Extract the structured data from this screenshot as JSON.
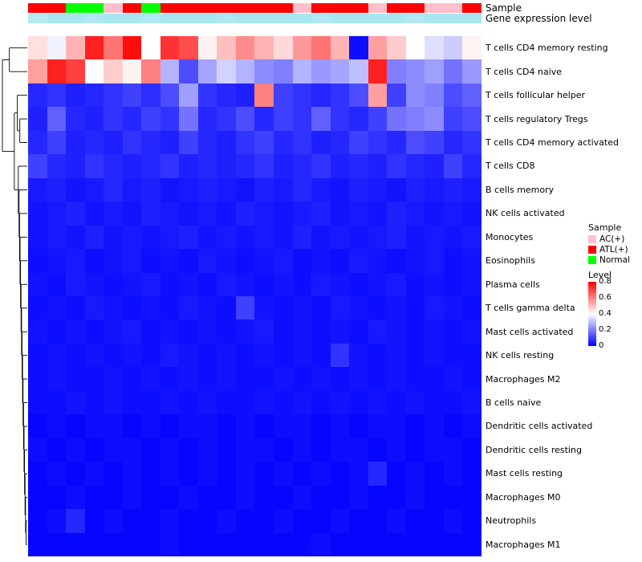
{
  "annotations": {
    "sample_label": "Sample",
    "gene_label": "Gene expression level"
  },
  "legend": {
    "sample_title": "Sample",
    "sample_entries": [
      {
        "label": "AC(+)",
        "color": "#FFC0CB"
      },
      {
        "label": "ATL(+)",
        "color": "#FF0000"
      },
      {
        "label": "Normal",
        "color": "#00FF00"
      }
    ],
    "level_title": "Level",
    "level_ticks": [
      "0.8",
      "0.6",
      "0.4",
      "0.2",
      "0"
    ],
    "level_gradient": [
      "#FF0000",
      "#FFFFFF",
      "#0000FF"
    ]
  },
  "chart_data": {
    "type": "heatmap",
    "title": "",
    "xlabel": "",
    "ylabel": "",
    "grid": false,
    "legend_position": "right",
    "columns": 24,
    "value_range": [
      0,
      0.8
    ],
    "colormap": [
      "#0000FF",
      "#FFFFFF",
      "#FF0000"
    ],
    "rows": [
      "T cells CD4 memory resting",
      "T cells CD4 naive",
      "T cells follicular helper",
      "T cells regulatory Tregs",
      "T cells CD4 memory activated",
      "T cells CD8",
      "B cells memory",
      "NK cells activated",
      "Monocytes",
      "Eosinophils",
      "Plasma cells",
      "T cells gamma delta",
      "Mast cells activated",
      "NK cells resting",
      "Macrophages M2",
      "B cells naive",
      "Dendritic cells activated",
      "Dendritic cells resting",
      "Mast cells resting",
      "Macrophages M0",
      "Neutrophils",
      "Macrophages M1"
    ],
    "values": [
      [
        0.45,
        0.38,
        0.52,
        0.75,
        0.62,
        0.78,
        0.4,
        0.72,
        0.68,
        0.42,
        0.5,
        0.58,
        0.52,
        0.46,
        0.56,
        0.62,
        0.52,
        0.02,
        0.55,
        0.48,
        0.4,
        0.35,
        0.32,
        0.42
      ],
      [
        0.55,
        0.75,
        0.7,
        0.4,
        0.48,
        0.42,
        0.6,
        0.28,
        0.12,
        0.26,
        0.33,
        0.28,
        0.22,
        0.2,
        0.28,
        0.24,
        0.26,
        0.3,
        0.75,
        0.2,
        0.22,
        0.25,
        0.18,
        0.24
      ],
      [
        0.06,
        0.08,
        0.05,
        0.06,
        0.08,
        0.1,
        0.07,
        0.12,
        0.25,
        0.08,
        0.06,
        0.05,
        0.6,
        0.1,
        0.08,
        0.06,
        0.08,
        0.12,
        0.55,
        0.1,
        0.22,
        0.2,
        0.12,
        0.15
      ],
      [
        0.05,
        0.15,
        0.06,
        0.05,
        0.08,
        0.06,
        0.1,
        0.08,
        0.18,
        0.06,
        0.08,
        0.12,
        0.06,
        0.1,
        0.08,
        0.15,
        0.08,
        0.06,
        0.1,
        0.18,
        0.2,
        0.22,
        0.1,
        0.12
      ],
      [
        0.06,
        0.1,
        0.05,
        0.06,
        0.05,
        0.08,
        0.06,
        0.05,
        0.1,
        0.06,
        0.05,
        0.08,
        0.1,
        0.06,
        0.08,
        0.05,
        0.06,
        0.1,
        0.08,
        0.06,
        0.12,
        0.1,
        0.06,
        0.08
      ],
      [
        0.1,
        0.06,
        0.05,
        0.08,
        0.06,
        0.05,
        0.06,
        0.08,
        0.05,
        0.06,
        0.05,
        0.06,
        0.08,
        0.05,
        0.06,
        0.08,
        0.05,
        0.06,
        0.05,
        0.08,
        0.06,
        0.05,
        0.1,
        0.06
      ],
      [
        0.04,
        0.05,
        0.03,
        0.04,
        0.06,
        0.04,
        0.05,
        0.03,
        0.04,
        0.05,
        0.04,
        0.03,
        0.05,
        0.04,
        0.06,
        0.04,
        0.03,
        0.05,
        0.04,
        0.03,
        0.05,
        0.04,
        0.05,
        0.04
      ],
      [
        0.03,
        0.04,
        0.05,
        0.03,
        0.04,
        0.03,
        0.05,
        0.04,
        0.03,
        0.04,
        0.03,
        0.05,
        0.04,
        0.03,
        0.04,
        0.05,
        0.03,
        0.04,
        0.03,
        0.05,
        0.04,
        0.03,
        0.04,
        0.03
      ],
      [
        0.03,
        0.04,
        0.03,
        0.05,
        0.03,
        0.04,
        0.03,
        0.04,
        0.05,
        0.03,
        0.04,
        0.03,
        0.04,
        0.03,
        0.05,
        0.03,
        0.04,
        0.03,
        0.04,
        0.05,
        0.03,
        0.04,
        0.03,
        0.04
      ],
      [
        0.02,
        0.03,
        0.04,
        0.02,
        0.03,
        0.04,
        0.02,
        0.03,
        0.02,
        0.04,
        0.03,
        0.02,
        0.03,
        0.04,
        0.02,
        0.03,
        0.02,
        0.04,
        0.03,
        0.02,
        0.03,
        0.04,
        0.02,
        0.03
      ],
      [
        0.03,
        0.02,
        0.04,
        0.03,
        0.02,
        0.03,
        0.04,
        0.02,
        0.03,
        0.02,
        0.04,
        0.03,
        0.02,
        0.03,
        0.02,
        0.04,
        0.03,
        0.02,
        0.03,
        0.04,
        0.02,
        0.03,
        0.02,
        0.03
      ],
      [
        0.02,
        0.03,
        0.02,
        0.04,
        0.03,
        0.02,
        0.03,
        0.02,
        0.04,
        0.03,
        0.02,
        0.1,
        0.03,
        0.02,
        0.03,
        0.02,
        0.04,
        0.03,
        0.02,
        0.03,
        0.02,
        0.04,
        0.03,
        0.02
      ],
      [
        0.03,
        0.02,
        0.03,
        0.02,
        0.03,
        0.04,
        0.02,
        0.03,
        0.02,
        0.03,
        0.02,
        0.03,
        0.04,
        0.02,
        0.03,
        0.02,
        0.03,
        0.02,
        0.04,
        0.03,
        0.02,
        0.03,
        0.02,
        0.03
      ],
      [
        0.02,
        0.03,
        0.02,
        0.03,
        0.02,
        0.03,
        0.02,
        0.04,
        0.03,
        0.02,
        0.03,
        0.02,
        0.03,
        0.02,
        0.03,
        0.02,
        0.08,
        0.03,
        0.02,
        0.03,
        0.02,
        0.03,
        0.02,
        0.02
      ],
      [
        0.02,
        0.03,
        0.02,
        0.02,
        0.03,
        0.02,
        0.03,
        0.02,
        0.03,
        0.02,
        0.03,
        0.02,
        0.02,
        0.03,
        0.02,
        0.03,
        0.02,
        0.03,
        0.02,
        0.03,
        0.02,
        0.02,
        0.03,
        0.02
      ],
      [
        0.02,
        0.02,
        0.03,
        0.02,
        0.03,
        0.02,
        0.02,
        0.03,
        0.02,
        0.03,
        0.02,
        0.02,
        0.03,
        0.02,
        0.03,
        0.02,
        0.03,
        0.02,
        0.03,
        0.02,
        0.03,
        0.02,
        0.02,
        0.03
      ],
      [
        0.01,
        0.02,
        0.01,
        0.02,
        0.02,
        0.01,
        0.02,
        0.01,
        0.02,
        0.02,
        0.01,
        0.02,
        0.01,
        0.02,
        0.02,
        0.01,
        0.02,
        0.01,
        0.02,
        0.02,
        0.01,
        0.02,
        0.01,
        0.02
      ],
      [
        0.02,
        0.01,
        0.02,
        0.01,
        0.02,
        0.02,
        0.01,
        0.02,
        0.01,
        0.02,
        0.01,
        0.02,
        0.02,
        0.01,
        0.02,
        0.01,
        0.02,
        0.02,
        0.01,
        0.02,
        0.01,
        0.02,
        0.02,
        0.01
      ],
      [
        0.01,
        0.02,
        0.01,
        0.02,
        0.01,
        0.02,
        0.01,
        0.02,
        0.01,
        0.02,
        0.01,
        0.02,
        0.01,
        0.02,
        0.01,
        0.02,
        0.01,
        0.02,
        0.06,
        0.01,
        0.02,
        0.01,
        0.02,
        0.01
      ],
      [
        0.01,
        0.01,
        0.02,
        0.01,
        0.01,
        0.02,
        0.01,
        0.01,
        0.02,
        0.01,
        0.01,
        0.02,
        0.01,
        0.01,
        0.02,
        0.01,
        0.01,
        0.02,
        0.01,
        0.01,
        0.02,
        0.01,
        0.01,
        0.01
      ],
      [
        0.01,
        0.02,
        0.06,
        0.01,
        0.02,
        0.01,
        0.01,
        0.02,
        0.01,
        0.01,
        0.02,
        0.01,
        0.01,
        0.02,
        0.01,
        0.01,
        0.02,
        0.01,
        0.01,
        0.02,
        0.01,
        0.01,
        0.02,
        0.01
      ],
      [
        0.01,
        0.01,
        0.01,
        0.01,
        0.01,
        0.01,
        0.01,
        0.02,
        0.01,
        0.01,
        0.01,
        0.01,
        0.01,
        0.01,
        0.01,
        0.02,
        0.01,
        0.01,
        0.01,
        0.01,
        0.01,
        0.01,
        0.01,
        0.01
      ]
    ],
    "column_samples": [
      "ATL(+)",
      "ATL(+)",
      "Normal",
      "Normal",
      "AC(+)",
      "ATL(+)",
      "Normal",
      "ATL(+)",
      "ATL(+)",
      "ATL(+)",
      "ATL(+)",
      "ATL(+)",
      "ATL(+)",
      "ATL(+)",
      "AC(+)",
      "ATL(+)",
      "ATL(+)",
      "ATL(+)",
      "AC(+)",
      "ATL(+)",
      "ATL(+)",
      "AC(+)",
      "AC(+)",
      "ATL(+)"
    ],
    "sample_colors": {
      "AC(+)": "#FFC0CB",
      "ATL(+)": "#FF0000",
      "Normal": "#00FF00"
    },
    "gene_expression_colors": [
      "#B6EAF3",
      "#A8E6F0",
      "#A8E6F0",
      "#AFE8F1",
      "#A8E6F0",
      "#A8E6F0",
      "#AFE8F1",
      "#A8E6F0",
      "#A8E6F0",
      "#A8E6F0",
      "#AFE8F1",
      "#A8E6F0",
      "#A8E6F0",
      "#A8E6F0",
      "#A8E6F0",
      "#AFE8F1",
      "#A8E6F0",
      "#A8E6F0",
      "#A8E6F0",
      "#A8E6F0",
      "#AFE8F1",
      "#A8E6F0",
      "#A8E6F0",
      "#A8E6F0"
    ],
    "row_dendrogram": [
      1.0,
      [
        0.72,
        0,
        1
      ],
      [
        0.52,
        [
          0.4,
          2,
          [
            0.3,
            3,
            4
          ]
        ],
        [
          0.36,
          5,
          [
            0.33,
            6,
            [
              0.31,
              7,
              [
                0.29,
                8,
                [
                  0.27,
                  9,
                  [
                    0.25,
                    10,
                    [
                      0.23,
                      11,
                      [
                        0.21,
                        12,
                        [
                          0.19,
                          13,
                          [
                            0.17,
                            14,
                            [
                              0.15,
                              15,
                              [
                                0.13,
                                16,
                                [
                                  0.11,
                                  17,
                                  [
                                    0.09,
                                    18,
                                    [
                                      0.07,
                                      19,
                                      [
                                        0.05,
                                        20,
                                        21
                                      ]
                                    ]
                                  ]
                                ]
                              ]
                            ]
                          ]
                        ]
                      ]
                    ]
                  ]
                ]
              ]
            ]
          ]
        ]
      ]
    ]
  }
}
